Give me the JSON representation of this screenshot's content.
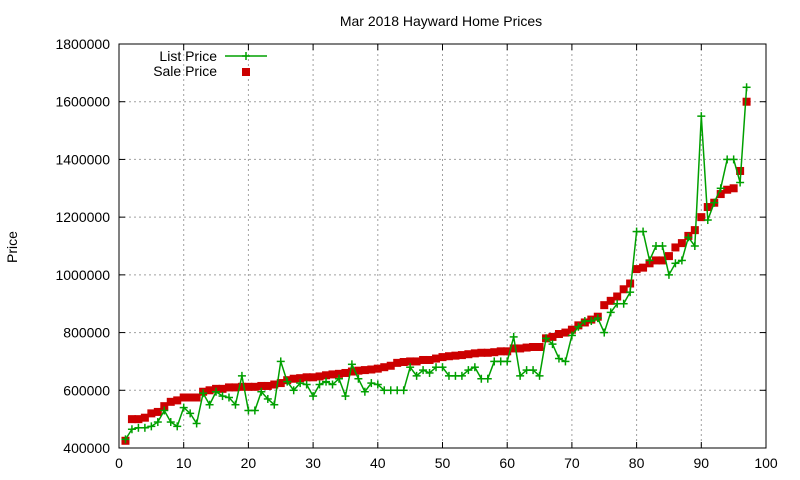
{
  "chart_data": {
    "type": "line",
    "title": "Mar 2018 Hayward Home Prices",
    "xlabel": "",
    "ylabel": "Price",
    "xlim": [
      0,
      100
    ],
    "ylim": [
      400000,
      1800000
    ],
    "x_ticks": [
      0,
      10,
      20,
      30,
      40,
      50,
      60,
      70,
      80,
      90,
      100
    ],
    "y_ticks": [
      400000,
      600000,
      800000,
      1000000,
      1200000,
      1400000,
      1600000,
      1800000
    ],
    "x_tick_labels": [
      "0",
      "10",
      "20",
      "30",
      "40",
      "50",
      "60",
      "70",
      "80",
      "90",
      "100"
    ],
    "y_tick_labels": [
      "400000",
      "600000",
      "800000",
      "1000000",
      "1200000",
      "1400000",
      "1600000",
      "1800000"
    ],
    "grid": true,
    "legend_position": "top-left",
    "x": [
      1,
      2,
      3,
      4,
      5,
      6,
      7,
      8,
      9,
      10,
      11,
      12,
      13,
      14,
      15,
      16,
      17,
      18,
      19,
      20,
      21,
      22,
      23,
      24,
      25,
      26,
      27,
      28,
      29,
      30,
      31,
      32,
      33,
      34,
      35,
      36,
      37,
      38,
      39,
      40,
      41,
      42,
      43,
      44,
      45,
      46,
      47,
      48,
      49,
      50,
      51,
      52,
      53,
      54,
      55,
      56,
      57,
      58,
      59,
      60,
      61,
      62,
      63,
      64,
      65,
      66,
      67,
      68,
      69,
      70,
      71,
      72,
      73,
      74,
      75,
      76,
      77,
      78,
      79,
      80,
      81,
      82,
      83,
      84,
      85,
      86,
      87,
      88,
      89,
      90,
      91,
      92,
      93,
      94,
      95,
      96,
      97
    ],
    "series": [
      {
        "name": "List Price",
        "color": "#00a000",
        "marker": "plus",
        "line": true,
        "values": [
          430000,
          465000,
          470000,
          470000,
          475000,
          490000,
          530000,
          490000,
          475000,
          540000,
          520000,
          485000,
          590000,
          550000,
          595000,
          580000,
          575000,
          550000,
          650000,
          530000,
          530000,
          595000,
          570000,
          550000,
          700000,
          630000,
          600000,
          625000,
          620000,
          580000,
          620000,
          630000,
          620000,
          640000,
          580000,
          690000,
          640000,
          595000,
          625000,
          620000,
          600000,
          600000,
          600000,
          600000,
          680000,
          650000,
          670000,
          660000,
          680000,
          680000,
          650000,
          650000,
          650000,
          670000,
          680000,
          640000,
          640000,
          700000,
          700000,
          700000,
          785000,
          650000,
          670000,
          670000,
          650000,
          780000,
          760000,
          710000,
          700000,
          790000,
          820000,
          840000,
          840000,
          850000,
          800000,
          870000,
          900000,
          900000,
          940000,
          1150000,
          1150000,
          1050000,
          1100000,
          1100000,
          1000000,
          1040000,
          1050000,
          1130000,
          1100000,
          1550000,
          1190000,
          1250000,
          1300000,
          1400000,
          1400000,
          1320000,
          1650000
        ]
      },
      {
        "name": "Sale Price",
        "color": "#cc0000",
        "marker": "square",
        "line": false,
        "values": [
          425000,
          500000,
          500000,
          505000,
          520000,
          525000,
          545000,
          560000,
          565000,
          575000,
          575000,
          575000,
          595000,
          600000,
          605000,
          605000,
          610000,
          610000,
          612000,
          612000,
          612000,
          615000,
          615000,
          620000,
          625000,
          635000,
          640000,
          642000,
          645000,
          645000,
          648000,
          652000,
          655000,
          657000,
          660000,
          665000,
          668000,
          670000,
          672000,
          675000,
          680000,
          685000,
          695000,
          698000,
          700000,
          700000,
          705000,
          705000,
          710000,
          715000,
          718000,
          720000,
          722000,
          725000,
          728000,
          730000,
          730000,
          732000,
          735000,
          735000,
          745000,
          745000,
          748000,
          750000,
          750000,
          780000,
          785000,
          795000,
          800000,
          810000,
          825000,
          835000,
          845000,
          855000,
          895000,
          910000,
          925000,
          950000,
          970000,
          1020000,
          1025000,
          1040000,
          1050000,
          1050000,
          1065000,
          1095000,
          1110000,
          1135000,
          1155000,
          1200000,
          1235000,
          1250000,
          1280000,
          1295000,
          1300000,
          1360000,
          1600000
        ]
      }
    ]
  }
}
